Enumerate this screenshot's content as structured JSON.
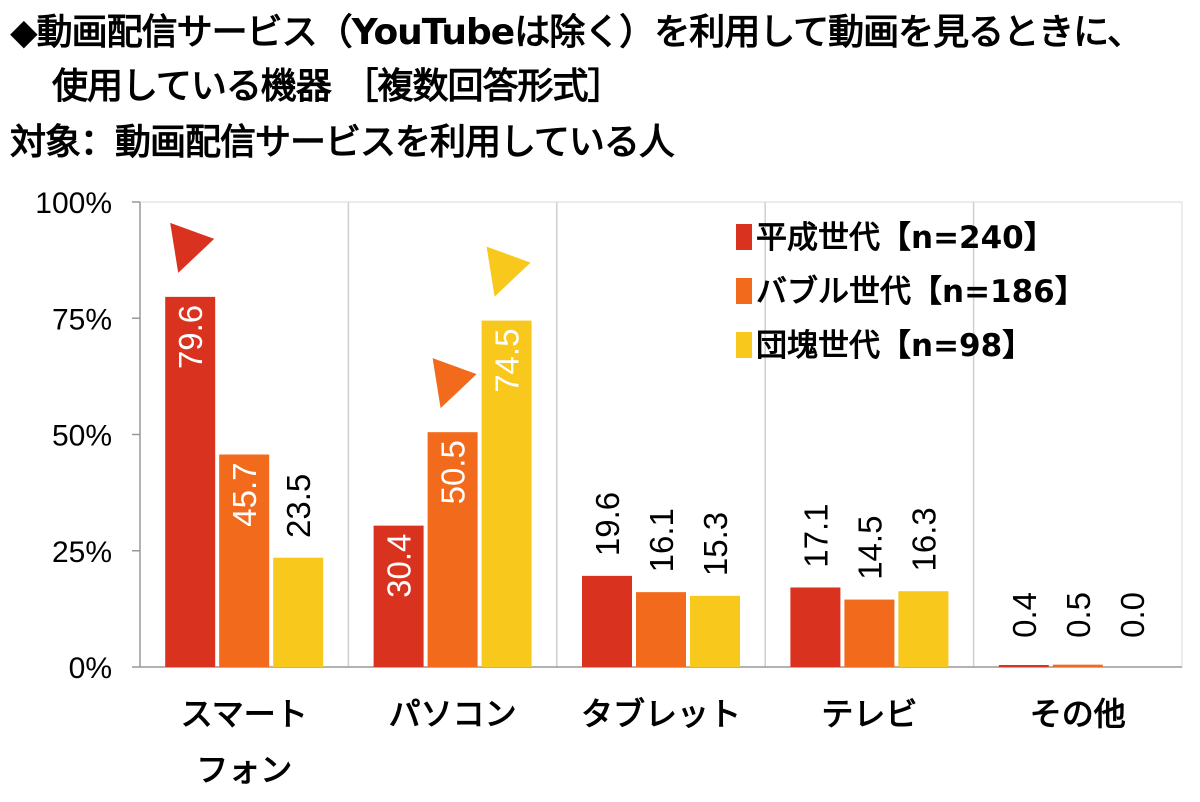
{
  "title": {
    "line1": "◆動画配信サービス（YouTubeは除く）を利用して動画を見るときに、",
    "line2": "使用している機器 ［複数回答形式］",
    "line3": "対象：動画配信サービスを利用している人"
  },
  "colors": {
    "series": [
      "#d9321f",
      "#f26b1d",
      "#f8c81c"
    ],
    "grid": "#cfcfcf",
    "plot_bg": "#ffffff"
  },
  "chart_data": {
    "type": "bar",
    "categories": [
      [
        "スマート",
        "フォン"
      ],
      [
        "パソコン"
      ],
      [
        "タブレット"
      ],
      [
        "テレビ"
      ],
      [
        "その他"
      ]
    ],
    "series": [
      {
        "name": "平成世代【n=240】",
        "values": [
          79.6,
          30.4,
          19.6,
          17.1,
          0.4
        ],
        "labels": [
          "79.6",
          "30.4",
          "19.6",
          "17.1",
          "0.4"
        ]
      },
      {
        "name": "バブル世代【n=186】",
        "values": [
          45.7,
          50.5,
          16.1,
          14.5,
          0.5
        ],
        "labels": [
          "45.7",
          "50.5",
          "16.1",
          "14.5",
          "0.5"
        ]
      },
      {
        "name": "団塊世代【n=98】",
        "values": [
          23.5,
          74.5,
          15.3,
          16.3,
          0.0
        ],
        "labels": [
          "23.5",
          "74.5",
          "15.3",
          "16.3",
          "0.0"
        ]
      }
    ],
    "yticks": [
      "0%",
      "25%",
      "50%",
      "75%",
      "100%"
    ],
    "ylim": [
      0,
      100
    ],
    "legend_position": "top-right",
    "grid": "vertical category separators",
    "highlights": [
      {
        "series": 0,
        "category": 0
      },
      {
        "series": 1,
        "category": 1
      },
      {
        "series": 2,
        "category": 1
      }
    ]
  }
}
